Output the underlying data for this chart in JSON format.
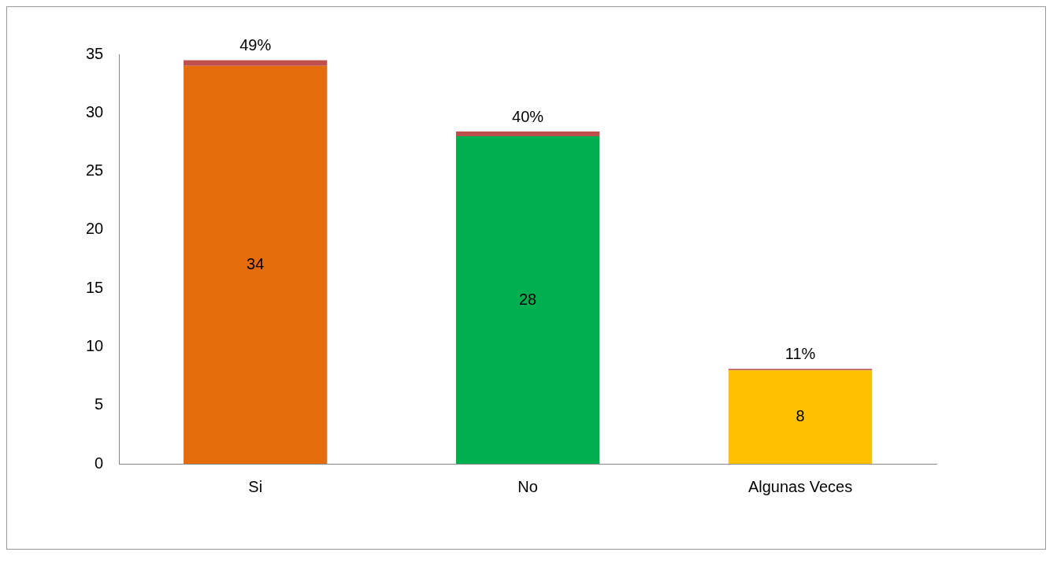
{
  "chart_data": {
    "type": "bar",
    "categories": [
      "Si",
      "No",
      "Algunas Veces"
    ],
    "stacked": true,
    "series": [
      {
        "colors": [
          "#e46c0a",
          "#00b050",
          "#ffc000"
        ],
        "values": [
          34,
          28,
          8
        ],
        "data_labels": true
      },
      {
        "color": "#c0504d",
        "values": [
          0.49,
          0.4,
          0.11
        ],
        "value_labels": [
          "49%",
          "40%",
          "11%"
        ]
      }
    ],
    "ylim": [
      0,
      35
    ],
    "yticks": [
      0,
      5,
      10,
      15,
      20,
      25,
      30,
      35
    ],
    "grid": false,
    "legend": false
  }
}
